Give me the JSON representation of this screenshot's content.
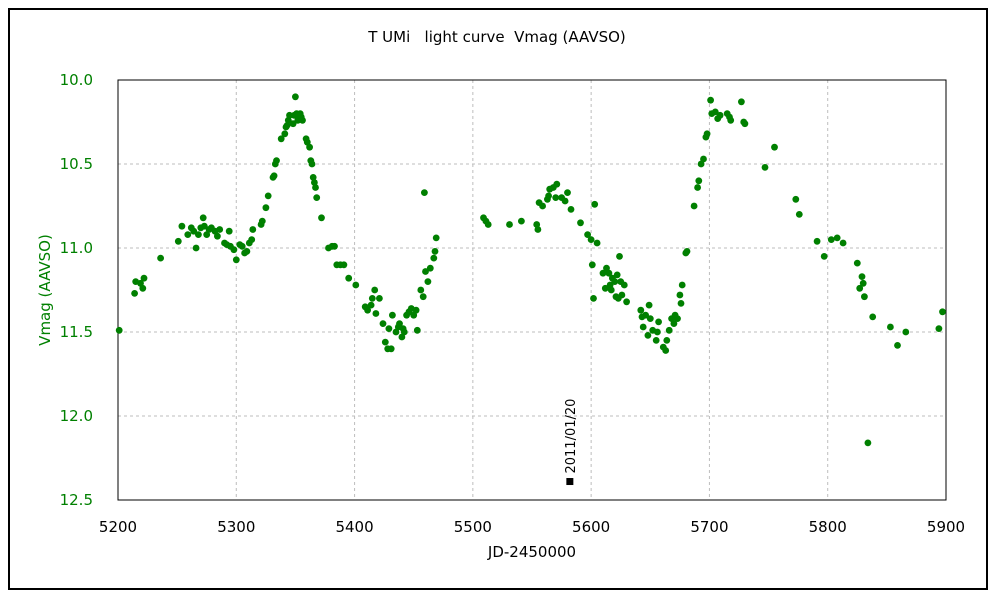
{
  "chart_data": {
    "type": "scatter",
    "title": "T UMi   light curve  Vmag (AAVSO)",
    "xlabel": "JD-2450000",
    "ylabel": "Vmag (AAVSO)",
    "xlim": [
      5200,
      5900
    ],
    "ylim": [
      12.5,
      10.0
    ],
    "y_inverted": true,
    "grid": true,
    "x_ticks": [
      "5200",
      "5300",
      "5400",
      "5500",
      "5600",
      "5700",
      "5800",
      "5900"
    ],
    "y_ticks": [
      "10.0",
      "10.5",
      "11.0",
      "11.5",
      "12.0",
      "12.5"
    ],
    "colors": {
      "points": "#008000",
      "ylabel": "#008000",
      "marker": "#000000"
    },
    "series": [
      {
        "name": "Vmag",
        "marker": "circle",
        "points": [
          [
            5201,
            11.49
          ],
          [
            5214,
            11.27
          ],
          [
            5215,
            11.2
          ],
          [
            5219,
            11.21
          ],
          [
            5221,
            11.24
          ],
          [
            5222,
            11.18
          ],
          [
            5236,
            11.06
          ],
          [
            5251,
            10.96
          ],
          [
            5254,
            10.87
          ],
          [
            5259,
            10.92
          ],
          [
            5262,
            10.88
          ],
          [
            5264,
            10.9
          ],
          [
            5266,
            11.0
          ],
          [
            5268,
            10.92
          ],
          [
            5270,
            10.88
          ],
          [
            5272,
            10.82
          ],
          [
            5273,
            10.87
          ],
          [
            5275,
            10.92
          ],
          [
            5277,
            10.89
          ],
          [
            5279,
            10.88
          ],
          [
            5282,
            10.9
          ],
          [
            5284,
            10.93
          ],
          [
            5286,
            10.89
          ],
          [
            5290,
            10.97
          ],
          [
            5292,
            10.98
          ],
          [
            5294,
            10.9
          ],
          [
            5295,
            10.99
          ],
          [
            5298,
            11.01
          ],
          [
            5300,
            11.07
          ],
          [
            5303,
            10.98
          ],
          [
            5305,
            10.99
          ],
          [
            5307,
            11.03
          ],
          [
            5309,
            11.02
          ],
          [
            5311,
            10.97
          ],
          [
            5313,
            10.95
          ],
          [
            5314,
            10.89
          ],
          [
            5321,
            10.86
          ],
          [
            5322,
            10.84
          ],
          [
            5325,
            10.76
          ],
          [
            5327,
            10.69
          ],
          [
            5331,
            10.58
          ],
          [
            5332,
            10.57
          ],
          [
            5333,
            10.5
          ],
          [
            5334,
            10.48
          ],
          [
            5338,
            10.35
          ],
          [
            5341,
            10.32
          ],
          [
            5342,
            10.28
          ],
          [
            5343,
            10.27
          ],
          [
            5344,
            10.24
          ],
          [
            5345,
            10.21
          ],
          [
            5348,
            10.26
          ],
          [
            5349,
            10.21
          ],
          [
            5350,
            10.1
          ],
          [
            5351,
            10.2
          ],
          [
            5352,
            10.24
          ],
          [
            5353,
            10.22
          ],
          [
            5354,
            10.2
          ],
          [
            5355,
            10.22
          ],
          [
            5356,
            10.24
          ],
          [
            5359,
            10.35
          ],
          [
            5360,
            10.37
          ],
          [
            5362,
            10.4
          ],
          [
            5363,
            10.48
          ],
          [
            5364,
            10.5
          ],
          [
            5365,
            10.58
          ],
          [
            5366,
            10.61
          ],
          [
            5367,
            10.64
          ],
          [
            5368,
            10.7
          ],
          [
            5372,
            10.82
          ],
          [
            5378,
            11.0
          ],
          [
            5381,
            10.99
          ],
          [
            5383,
            10.99
          ],
          [
            5385,
            11.1
          ],
          [
            5388,
            11.1
          ],
          [
            5391,
            11.1
          ],
          [
            5395,
            11.18
          ],
          [
            5401,
            11.22
          ],
          [
            5409,
            11.35
          ],
          [
            5411,
            11.37
          ],
          [
            5414,
            11.34
          ],
          [
            5415,
            11.3
          ],
          [
            5417,
            11.25
          ],
          [
            5418,
            11.39
          ],
          [
            5421,
            11.3
          ],
          [
            5424,
            11.45
          ],
          [
            5426,
            11.56
          ],
          [
            5428,
            11.6
          ],
          [
            5429,
            11.48
          ],
          [
            5431,
            11.6
          ],
          [
            5432,
            11.4
          ],
          [
            5435,
            11.5
          ],
          [
            5437,
            11.47
          ],
          [
            5438,
            11.45
          ],
          [
            5440,
            11.53
          ],
          [
            5441,
            11.48
          ],
          [
            5442,
            11.5
          ],
          [
            5444,
            11.4
          ],
          [
            5446,
            11.38
          ],
          [
            5448,
            11.36
          ],
          [
            5450,
            11.4
          ],
          [
            5452,
            11.37
          ],
          [
            5453,
            11.49
          ],
          [
            5456,
            11.25
          ],
          [
            5458,
            11.29
          ],
          [
            5459,
            10.67
          ],
          [
            5460,
            11.14
          ],
          [
            5462,
            11.2
          ],
          [
            5464,
            11.12
          ],
          [
            5467,
            11.06
          ],
          [
            5468,
            11.02
          ],
          [
            5469,
            10.94
          ],
          [
            5509,
            10.82
          ],
          [
            5511,
            10.84
          ],
          [
            5513,
            10.86
          ],
          [
            5531,
            10.86
          ],
          [
            5541,
            10.84
          ],
          [
            5554,
            10.86
          ],
          [
            5555,
            10.89
          ],
          [
            5556,
            10.73
          ],
          [
            5559,
            10.75
          ],
          [
            5563,
            10.71
          ],
          [
            5564,
            10.69
          ],
          [
            5565,
            10.65
          ],
          [
            5568,
            10.64
          ],
          [
            5570,
            10.7
          ],
          [
            5571,
            10.62
          ],
          [
            5575,
            10.7
          ],
          [
            5578,
            10.72
          ],
          [
            5580,
            10.67
          ],
          [
            5583,
            10.77
          ],
          [
            5591,
            10.85
          ],
          [
            5597,
            10.92
          ],
          [
            5600,
            10.95
          ],
          [
            5601,
            11.1
          ],
          [
            5602,
            11.3
          ],
          [
            5603,
            10.74
          ],
          [
            5605,
            10.97
          ],
          [
            5610,
            11.15
          ],
          [
            5612,
            11.24
          ],
          [
            5613,
            11.12
          ],
          [
            5615,
            11.15
          ],
          [
            5616,
            11.22
          ],
          [
            5617,
            11.25
          ],
          [
            5618,
            11.18
          ],
          [
            5620,
            11.2
          ],
          [
            5621,
            11.29
          ],
          [
            5622,
            11.16
          ],
          [
            5623,
            11.3
          ],
          [
            5624,
            11.05
          ],
          [
            5625,
            11.2
          ],
          [
            5626,
            11.28
          ],
          [
            5628,
            11.22
          ],
          [
            5630,
            11.32
          ],
          [
            5642,
            11.37
          ],
          [
            5643,
            11.41
          ],
          [
            5644,
            11.47
          ],
          [
            5646,
            11.4
          ],
          [
            5648,
            11.52
          ],
          [
            5649,
            11.34
          ],
          [
            5650,
            11.42
          ],
          [
            5652,
            11.49
          ],
          [
            5655,
            11.55
          ],
          [
            5656,
            11.5
          ],
          [
            5657,
            11.44
          ],
          [
            5661,
            11.59
          ],
          [
            5663,
            11.61
          ],
          [
            5664,
            11.55
          ],
          [
            5666,
            11.49
          ],
          [
            5668,
            11.42
          ],
          [
            5670,
            11.45
          ],
          [
            5671,
            11.4
          ],
          [
            5673,
            11.42
          ],
          [
            5675,
            11.28
          ],
          [
            5676,
            11.33
          ],
          [
            5677,
            11.22
          ],
          [
            5680,
            11.03
          ],
          [
            5681,
            11.02
          ],
          [
            5687,
            10.75
          ],
          [
            5690,
            10.64
          ],
          [
            5691,
            10.6
          ],
          [
            5693,
            10.5
          ],
          [
            5695,
            10.47
          ],
          [
            5697,
            10.34
          ],
          [
            5698,
            10.32
          ],
          [
            5701,
            10.12
          ],
          [
            5702,
            10.2
          ],
          [
            5705,
            10.19
          ],
          [
            5707,
            10.23
          ],
          [
            5709,
            10.21
          ],
          [
            5715,
            10.2
          ],
          [
            5717,
            10.22
          ],
          [
            5718,
            10.24
          ],
          [
            5727,
            10.13
          ],
          [
            5729,
            10.25
          ],
          [
            5730,
            10.26
          ],
          [
            5747,
            10.52
          ],
          [
            5755,
            10.4
          ],
          [
            5773,
            10.71
          ],
          [
            5776,
            10.8
          ],
          [
            5791,
            10.96
          ],
          [
            5797,
            11.05
          ],
          [
            5803,
            10.95
          ],
          [
            5808,
            10.94
          ],
          [
            5813,
            10.97
          ],
          [
            5825,
            11.09
          ],
          [
            5827,
            11.24
          ],
          [
            5829,
            11.17
          ],
          [
            5830,
            11.21
          ],
          [
            5831,
            11.29
          ],
          [
            5834,
            12.16
          ],
          [
            5838,
            11.41
          ],
          [
            5853,
            11.47
          ],
          [
            5859,
            11.58
          ],
          [
            5866,
            11.5
          ],
          [
            5894,
            11.48
          ],
          [
            5897,
            11.38
          ]
        ]
      }
    ],
    "annotations": [
      {
        "text": "2011/01/20",
        "x": 5582,
        "y": 12.39,
        "marker": "square",
        "text_rotation": -90
      }
    ]
  }
}
